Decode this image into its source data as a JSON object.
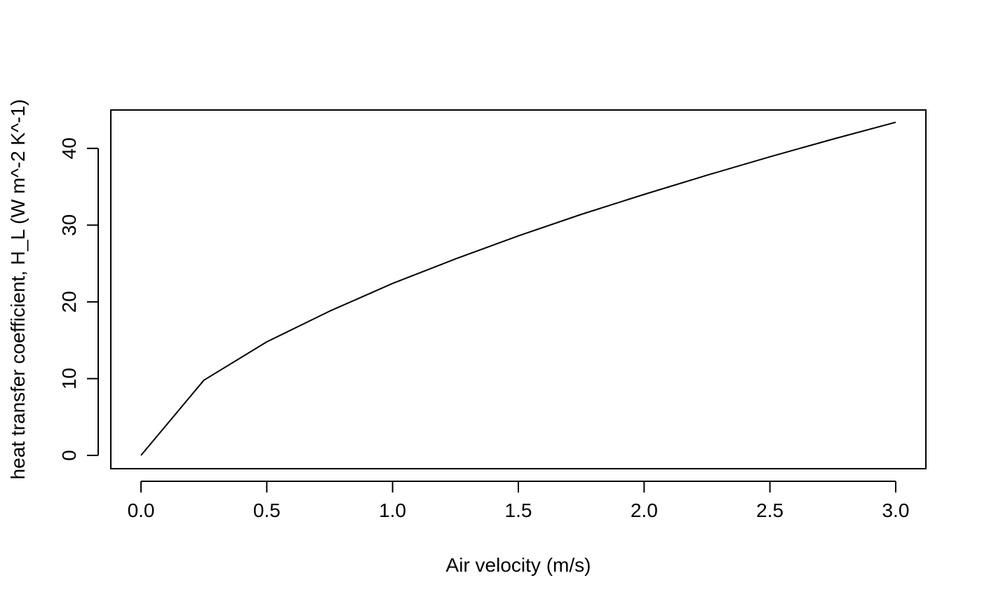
{
  "chart_data": {
    "type": "line",
    "title": "",
    "xlabel": "Air velocity (m/s)",
    "ylabel": "heat transfer coefficient, H_L (W m^-2 K^-1)",
    "xlim": [
      -0.12,
      3.12
    ],
    "ylim": [
      -1.73,
      45.0
    ],
    "x_ticks": [
      {
        "value": 0.0,
        "label": "0.0"
      },
      {
        "value": 0.5,
        "label": "0.5"
      },
      {
        "value": 1.0,
        "label": "1.0"
      },
      {
        "value": 1.5,
        "label": "1.5"
      },
      {
        "value": 2.0,
        "label": "2.0"
      },
      {
        "value": 2.5,
        "label": "2.5"
      },
      {
        "value": 3.0,
        "label": "3.0"
      }
    ],
    "y_ticks": [
      {
        "value": 0,
        "label": "0"
      },
      {
        "value": 10,
        "label": "10"
      },
      {
        "value": 20,
        "label": "20"
      },
      {
        "value": 30,
        "label": "30"
      },
      {
        "value": 40,
        "label": "40"
      }
    ],
    "grid": false,
    "legend": "none",
    "line_color": "#000000",
    "series": [
      {
        "x": [
          0.0,
          0.25,
          0.5,
          0.75,
          1.0,
          1.25,
          1.5,
          1.75,
          2.0,
          2.25,
          2.5,
          2.75,
          3.0
        ],
        "values": [
          0.0,
          9.8,
          14.8,
          18.8,
          22.4,
          25.6,
          28.6,
          31.4,
          34.0,
          36.5,
          38.9,
          41.2,
          43.4
        ]
      }
    ]
  }
}
